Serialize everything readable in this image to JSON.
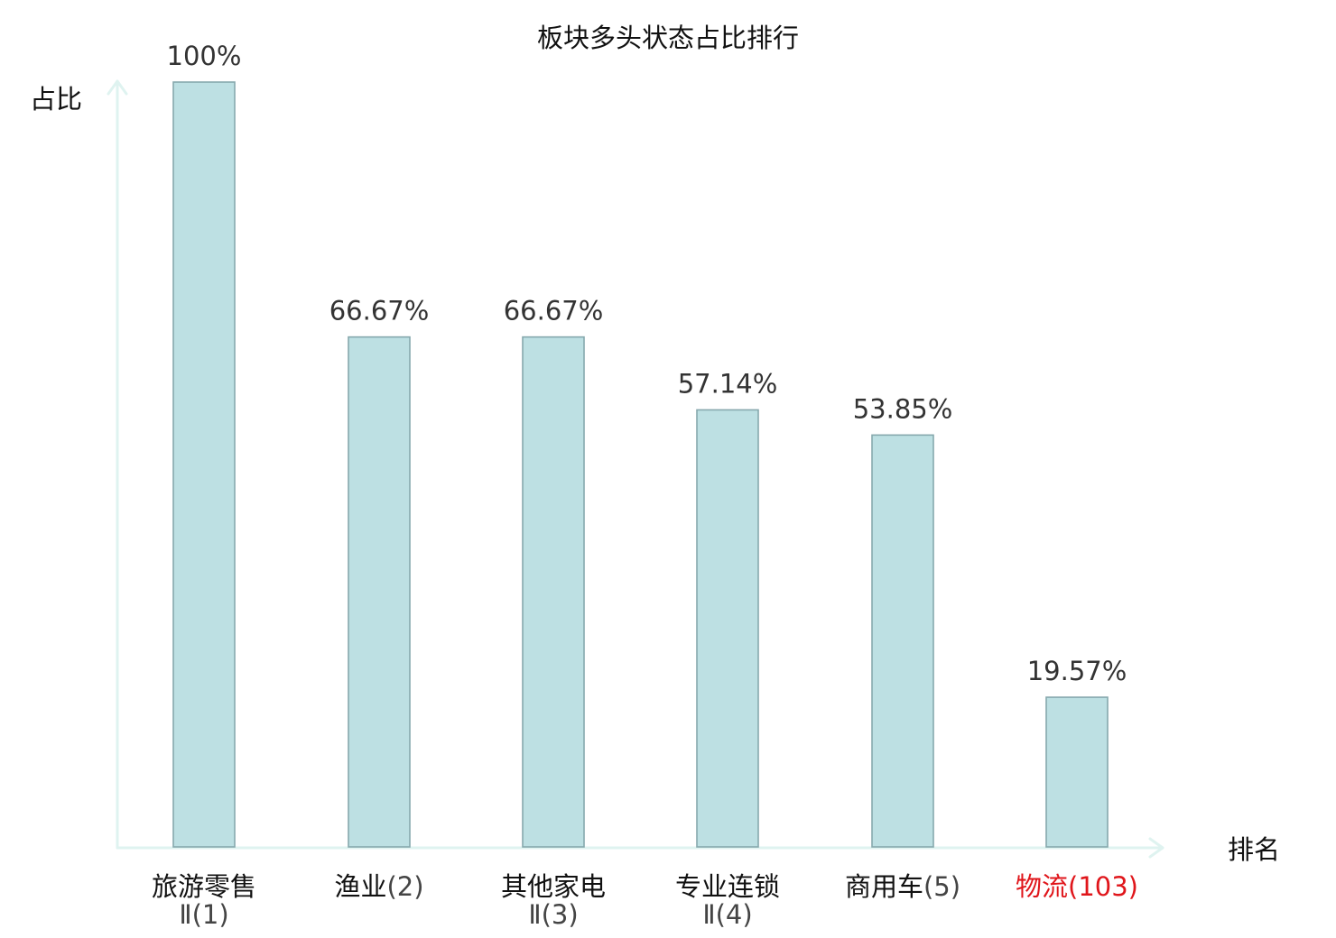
{
  "chart_data": {
    "type": "bar",
    "title": "板块多头状态占比排行",
    "ylabel": "占比",
    "xlabel": "排名",
    "ylim": [
      0,
      100
    ],
    "categories": [
      {
        "name": "旅游零售",
        "sub": "Ⅱ(1)",
        "value": 100,
        "label": "100%",
        "highlight": false
      },
      {
        "name": "渔业",
        "suffix": "(2)",
        "value": 66.67,
        "label": "66.67%",
        "highlight": false
      },
      {
        "name": "其他家电",
        "sub": "Ⅱ(3)",
        "value": 66.67,
        "label": "66.67%",
        "highlight": false
      },
      {
        "name": "专业连锁",
        "sub": "Ⅱ(4)",
        "value": 57.14,
        "label": "57.14%",
        "highlight": false
      },
      {
        "name": "商用车",
        "suffix": "(5)",
        "value": 53.85,
        "label": "53.85%",
        "highlight": false
      },
      {
        "name": "物流",
        "suffix": "(103)",
        "value": 19.57,
        "label": "19.57%",
        "highlight": true
      }
    ],
    "colors": {
      "bar_fill": "#bde0e3",
      "bar_stroke": "#86a8ad",
      "axis": "#dff3f0",
      "highlight": "#e0161b",
      "category_text": "#111111",
      "suffix_text": "#444444"
    },
    "grid": false,
    "legend": "none"
  }
}
